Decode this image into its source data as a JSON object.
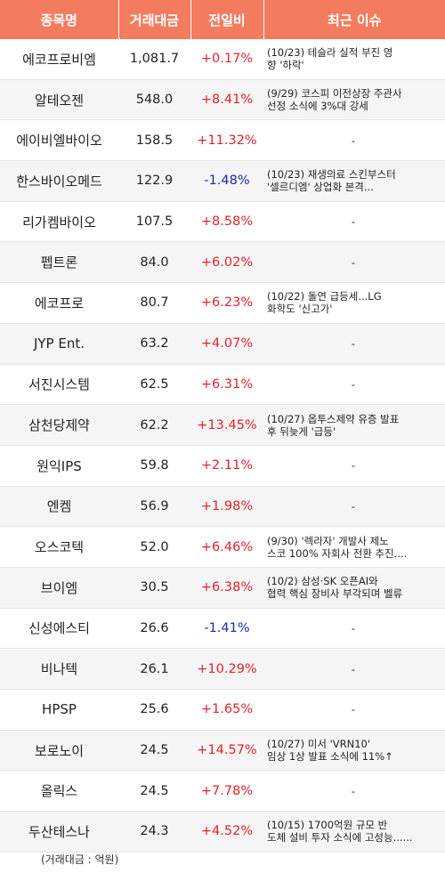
{
  "header": {
    "name": "종목명",
    "volume": "거래대금",
    "change": "전일비",
    "issue": "최근 이슈"
  },
  "rows": [
    {
      "name": "에코프로비엠",
      "volume": "1,081.7",
      "change": "+0.17%",
      "dir": "up",
      "news1": "(10/23) 테슬라 실적 부진 영",
      "news2": "향 '하락'"
    },
    {
      "name": "알테오젠",
      "volume": "548.0",
      "change": "+8.41%",
      "dir": "up",
      "news1": "(9/29) 코스피 이전상장 주관사",
      "news2": " 선정 소식에 3%대 강세"
    },
    {
      "name": "에이비엘바이오",
      "volume": "158.5",
      "change": "+11.32%",
      "dir": "up",
      "news1": "-",
      "news2": ""
    },
    {
      "name": "한스바이오메드",
      "volume": "122.9",
      "change": "-1.48%",
      "dir": "down",
      "news1": "(10/23) 재생의료 스킨부스터",
      "news2": "'셀르디엠' 상업화 본격..."
    },
    {
      "name": "리가켐바이오",
      "volume": "107.5",
      "change": "+8.58%",
      "dir": "up",
      "news1": "-",
      "news2": ""
    },
    {
      "name": "펩트론",
      "volume": "84.0",
      "change": "+6.02%",
      "dir": "up",
      "news1": "-",
      "news2": ""
    },
    {
      "name": "에코프로",
      "volume": "80.7",
      "change": "+6.23%",
      "dir": "up",
      "news1": "(10/22) 돌연 급등세...LG",
      "news2": "화학도 '신고가'"
    },
    {
      "name": "JYP Ent.",
      "volume": "63.2",
      "change": "+4.07%",
      "dir": "up",
      "news1": "-",
      "news2": ""
    },
    {
      "name": "서진시스템",
      "volume": "62.5",
      "change": "+6.31%",
      "dir": "up",
      "news1": "-",
      "news2": ""
    },
    {
      "name": "삼천당제약",
      "volume": "62.2",
      "change": "+13.45%",
      "dir": "up",
      "news1": "(10/27) 옵투스제약 유증 발표",
      "news2": " 후 뒤늦게 '급등'"
    },
    {
      "name": "원익IPS",
      "volume": "59.8",
      "change": "+2.11%",
      "dir": "up",
      "news1": "-",
      "news2": ""
    },
    {
      "name": "엔켐",
      "volume": "56.9",
      "change": "+1.98%",
      "dir": "up",
      "news1": "-",
      "news2": ""
    },
    {
      "name": "오스코텍",
      "volume": "52.0",
      "change": "+6.46%",
      "dir": "up",
      "news1": "(9/30) '렉라자' 개발사 제노",
      "news2": "스코 100% 자회사 전환 추진...."
    },
    {
      "name": "브이엠",
      "volume": "30.5",
      "change": "+6.38%",
      "dir": "up",
      "news1": "(10/2) 삼성·SK 오픈AI와",
      "news2": "협력 핵심 장비사 부각되며 벨류"
    },
    {
      "name": "신성에스티",
      "volume": "26.6",
      "change": "-1.41%",
      "dir": "down",
      "news1": "-",
      "news2": ""
    },
    {
      "name": "비나텍",
      "volume": "26.1",
      "change": "+10.29%",
      "dir": "up",
      "news1": "-",
      "news2": ""
    },
    {
      "name": "HPSP",
      "volume": "25.6",
      "change": "+1.65%",
      "dir": "up",
      "news1": "-",
      "news2": ""
    },
    {
      "name": "보로노이",
      "volume": "24.5",
      "change": "+14.57%",
      "dir": "up",
      "news1": "(10/27) 미서 'VRN10'",
      "news2": "임상 1상 발표 소식에 11%↑"
    },
    {
      "name": "올릭스",
      "volume": "24.5",
      "change": "+7.78%",
      "dir": "up",
      "news1": "-",
      "news2": ""
    },
    {
      "name": "두산테스나",
      "volume": "24.3",
      "change": "+4.52%",
      "dir": "up",
      "news1": "(10/15) 1700억원 규모 반",
      "news2": "도체 설비 투자 소식에 고성능......"
    }
  ],
  "footnote": "(거래대금 : 억원)"
}
